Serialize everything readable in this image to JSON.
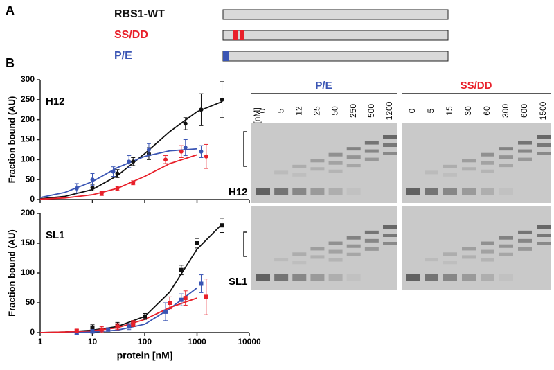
{
  "figure": {
    "panel_a": "A",
    "panel_b": "B",
    "constructs": [
      {
        "label": "RBS1-WT",
        "color": "#111111"
      },
      {
        "label": "SS/DD",
        "color": "#e8202a"
      },
      {
        "label": "P/E",
        "color": "#3a55b4"
      }
    ]
  },
  "chart_data": [
    {
      "type": "scatter",
      "title": "H12",
      "ylabel": "Fraction bound (AU)",
      "xscale": "log",
      "xlim": [
        1,
        10000
      ],
      "xticks": [
        1,
        10,
        100,
        1000,
        10000
      ],
      "ylim": [
        0,
        300
      ],
      "yticks": [
        0,
        50,
        100,
        150,
        200,
        250,
        300
      ],
      "series": [
        {
          "color": "#111111",
          "x": [
            10,
            30,
            60,
            120,
            600,
            1200,
            3000
          ],
          "values": [
            30,
            65,
            95,
            115,
            190,
            225,
            250
          ],
          "errors": [
            8,
            10,
            10,
            15,
            15,
            40,
            45
          ]
        },
        {
          "color": "#3a55b4",
          "x": [
            5,
            10,
            25,
            50,
            120,
            600,
            1200
          ],
          "values": [
            28,
            50,
            70,
            95,
            125,
            130,
            120
          ],
          "errors": [
            12,
            15,
            12,
            15,
            15,
            20,
            15
          ]
        },
        {
          "color": "#e8202a",
          "x": [
            15,
            30,
            60,
            250,
            500,
            1500
          ],
          "values": [
            15,
            28,
            42,
            100,
            120,
            108
          ],
          "errors": [
            5,
            5,
            5,
            10,
            15,
            30
          ]
        }
      ],
      "fit_x": [
        1,
        3,
        10,
        30,
        100,
        300,
        1000,
        3000
      ],
      "fits": [
        {
          "color": "#111111",
          "values": [
            2,
            8,
            25,
            60,
            115,
            170,
            220,
            245
          ]
        },
        {
          "color": "#3a55b4",
          "values": [
            5,
            18,
            45,
            80,
            108,
            122,
            127,
            null
          ]
        },
        {
          "color": "#e8202a",
          "values": [
            1,
            4,
            12,
            28,
            58,
            90,
            112,
            null
          ]
        }
      ]
    },
    {
      "type": "scatter",
      "title": "SL1",
      "ylabel": "Fraction bound (AU)",
      "xlabel": "protein [nM]",
      "xscale": "log",
      "xlim": [
        1,
        10000
      ],
      "xticks": [
        1,
        10,
        100,
        1000,
        10000
      ],
      "ylim": [
        0,
        200
      ],
      "yticks": [
        0,
        50,
        100,
        150,
        200
      ],
      "series": [
        {
          "color": "#111111",
          "x": [
            10,
            30,
            60,
            100,
            500,
            1000,
            3000
          ],
          "values": [
            8,
            12,
            15,
            27,
            105,
            150,
            180
          ],
          "errors": [
            5,
            5,
            5,
            5,
            8,
            8,
            12
          ]
        },
        {
          "color": "#3a55b4",
          "x": [
            5,
            10,
            20,
            50,
            250,
            500,
            1200
          ],
          "values": [
            0,
            2,
            5,
            10,
            35,
            55,
            82
          ],
          "errors": [
            3,
            3,
            3,
            5,
            15,
            10,
            15
          ]
        },
        {
          "color": "#e8202a",
          "x": [
            5,
            15,
            30,
            60,
            300,
            600,
            1500
          ],
          "values": [
            3,
            5,
            10,
            15,
            50,
            58,
            60
          ],
          "errors": [
            2,
            5,
            5,
            5,
            10,
            12,
            30
          ]
        }
      ],
      "fit_x": [
        1,
        3,
        10,
        30,
        100,
        300,
        1000,
        3000
      ],
      "fits": [
        {
          "color": "#111111",
          "values": [
            0,
            1,
            4,
            10,
            27,
            68,
            140,
            182
          ]
        },
        {
          "color": "#3a55b4",
          "values": [
            0,
            0,
            1,
            4,
            14,
            40,
            75,
            null
          ]
        },
        {
          "color": "#e8202a",
          "values": [
            0,
            1,
            3,
            8,
            22,
            42,
            58,
            null
          ]
        }
      ]
    }
  ],
  "gels": {
    "unit": "[nM]",
    "rows": [
      "H12",
      "SL1"
    ],
    "panels": [
      {
        "title": "P/E",
        "color": "#3a55b4",
        "lanes": [
          "0",
          "5",
          "12",
          "25",
          "50",
          "250",
          "500",
          "1200"
        ]
      },
      {
        "title": "SS/DD",
        "color": "#e8202a",
        "lanes": [
          "0",
          "5",
          "15",
          "30",
          "60",
          "300",
          "600",
          "1500"
        ]
      }
    ]
  }
}
